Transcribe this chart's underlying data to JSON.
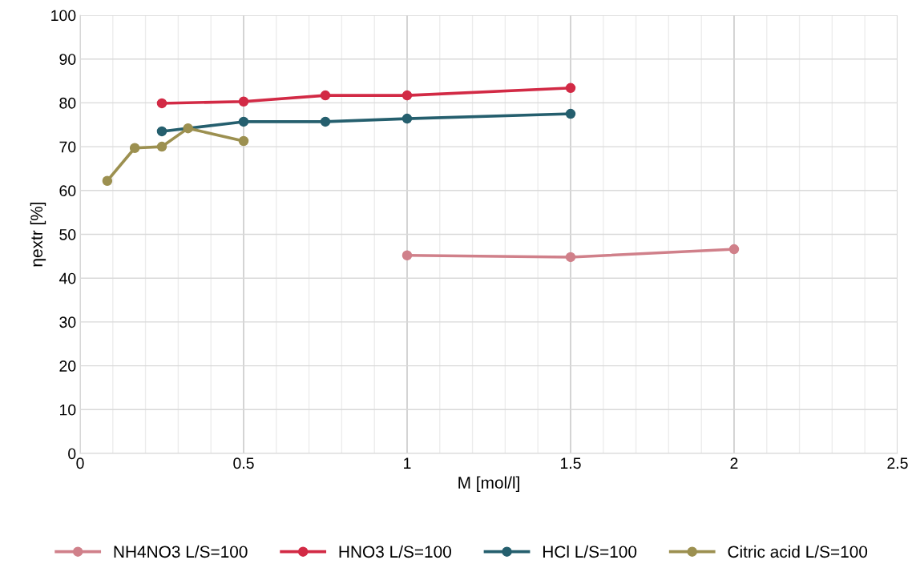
{
  "chart_data": {
    "type": "line",
    "xlabel": "M [mol/l]",
    "ylabel": "ηextr [%]",
    "xlim": [
      0,
      2.5
    ],
    "xticks": [
      0,
      0.5,
      1,
      1.5,
      2,
      2.5
    ],
    "ylim": [
      0,
      100
    ],
    "yticks": [
      0,
      10,
      20,
      30,
      40,
      50,
      60,
      70,
      80,
      90,
      100
    ],
    "grid": true,
    "legend": "bottom",
    "marker": "circle",
    "line_style": "solid",
    "series": [
      {
        "name": "NH4NO3 L/S=100",
        "color": "#d0808a",
        "x": [
          1,
          1.5,
          2
        ],
        "values": [
          45.2,
          44.8,
          46.6
        ]
      },
      {
        "name": "HNO3 L/S=100",
        "color": "#d22a45",
        "x": [
          0.25,
          0.5,
          0.75,
          1,
          1.5
        ],
        "values": [
          79.9,
          80.3,
          81.7,
          81.7,
          83.4
        ]
      },
      {
        "name": "HCl L/S=100",
        "color": "#255f6e",
        "x": [
          0.25,
          0.5,
          0.75,
          1,
          1.5
        ],
        "values": [
          73.5,
          75.7,
          75.7,
          76.4,
          77.5
        ]
      },
      {
        "name": "Citric acid L/S=100",
        "color": "#9c9050",
        "x": [
          0.083,
          0.167,
          0.25,
          0.33,
          0.5
        ],
        "values": [
          62.2,
          69.7,
          70.0,
          74.2,
          71.3
        ]
      }
    ]
  }
}
